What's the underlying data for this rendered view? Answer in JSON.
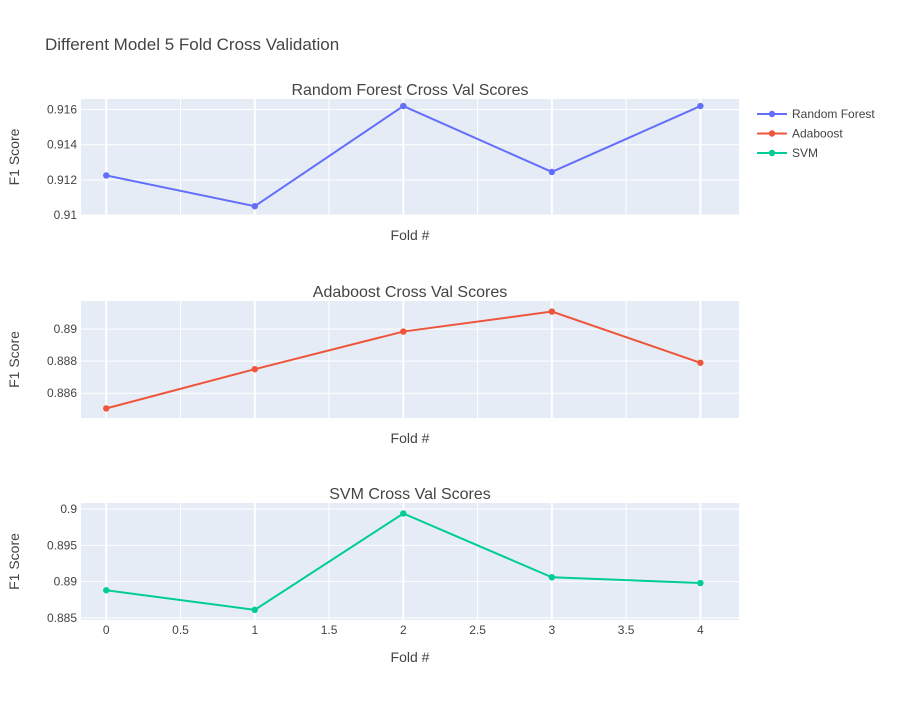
{
  "title": "Different Model 5 Fold Cross Validation",
  "legend": {
    "placement": "top-right",
    "items": [
      {
        "name": "Random Forest",
        "color": "#636efa"
      },
      {
        "name": "Adaboost",
        "color": "#ef553b"
      },
      {
        "name": "SVM",
        "color": "#00cc96"
      }
    ]
  },
  "chart_data": [
    {
      "type": "line",
      "title": "Random Forest Cross Val Scores",
      "xlabel": "Fold #",
      "ylabel": "F1 Score",
      "series": [
        {
          "name": "Random Forest",
          "color": "#636efa",
          "x": [
            0,
            1,
            2,
            3,
            4
          ],
          "values": [
            0.91225,
            0.9105,
            0.9162,
            0.91245,
            0.9162
          ]
        }
      ],
      "xlim": [
        -0.17,
        4.26
      ],
      "ylim": [
        0.91,
        0.9166
      ],
      "y_ticks": [
        0.91,
        0.912,
        0.914,
        0.916
      ],
      "y_tick_labels": [
        "0.91",
        "0.912",
        "0.914",
        "0.916"
      ],
      "x_ticks": [
        0,
        0.5,
        1,
        1.5,
        2,
        2.5,
        3,
        3.5,
        4
      ],
      "show_x_tick_labels": false,
      "grid": true
    },
    {
      "type": "line",
      "title": "Adaboost Cross Val Scores",
      "xlabel": "Fold #",
      "ylabel": "F1 Score",
      "series": [
        {
          "name": "Adaboost",
          "color": "#ef553b",
          "x": [
            0,
            1,
            2,
            3,
            4
          ],
          "values": [
            0.88505,
            0.8875,
            0.88985,
            0.8911,
            0.8879
          ]
        }
      ],
      "xlim": [
        -0.17,
        4.26
      ],
      "ylim": [
        0.88445,
        0.89176
      ],
      "y_ticks": [
        0.886,
        0.888,
        0.89
      ],
      "y_tick_labels": [
        "0.886",
        "0.888",
        "0.89"
      ],
      "x_ticks": [
        0,
        0.5,
        1,
        1.5,
        2,
        2.5,
        3,
        3.5,
        4
      ],
      "show_x_tick_labels": false,
      "grid": true
    },
    {
      "type": "line",
      "title": "SVM Cross Val Scores",
      "xlabel": "Fold #",
      "ylabel": "F1 Score",
      "series": [
        {
          "name": "SVM",
          "color": "#00cc96",
          "x": [
            0,
            1,
            2,
            3,
            4
          ],
          "values": [
            0.8888,
            0.8861,
            0.8994,
            0.8906,
            0.8898
          ]
        }
      ],
      "xlim": [
        -0.17,
        4.26
      ],
      "ylim": [
        0.8847,
        0.90085
      ],
      "y_ticks": [
        0.885,
        0.89,
        0.895,
        0.9
      ],
      "y_tick_labels": [
        "0.885",
        "0.89",
        "0.895",
        "0.9"
      ],
      "x_ticks": [
        0,
        0.5,
        1,
        1.5,
        2,
        2.5,
        3,
        3.5,
        4
      ],
      "x_tick_labels": [
        "0",
        "0.5",
        "1",
        "1.5",
        "2",
        "2.5",
        "3",
        "3.5",
        "4"
      ],
      "show_x_tick_labels": true,
      "grid": true
    }
  ]
}
